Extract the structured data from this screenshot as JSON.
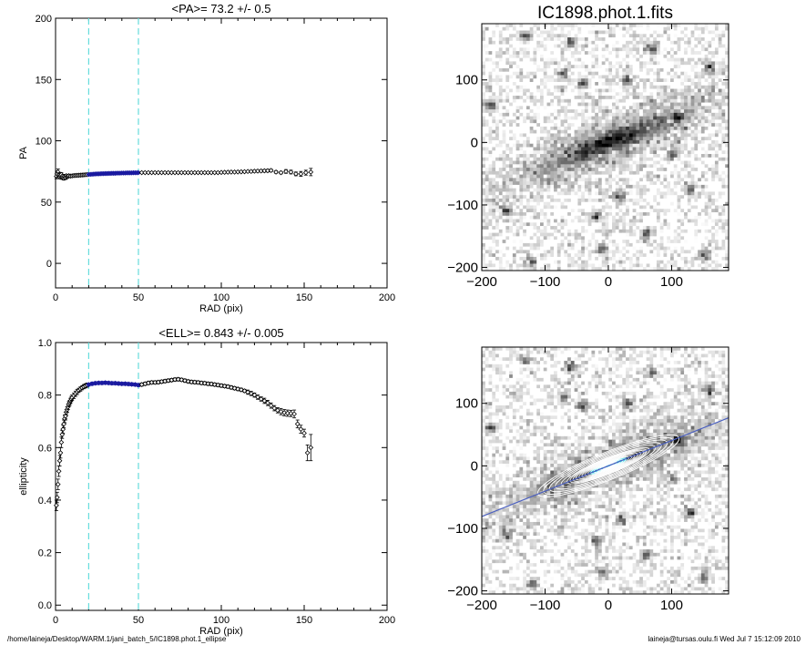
{
  "chart_data": [
    {
      "type": "scatter",
      "title": "<PA>=  73.2 +/-   0.5",
      "xlabel": "RAD (pix)",
      "ylabel": "PA",
      "xlim": [
        0,
        200
      ],
      "ylim": [
        -20,
        200
      ],
      "xticks": [
        0,
        50,
        100,
        150,
        200
      ],
      "yticks": [
        0,
        50,
        100,
        150,
        200
      ],
      "vlines": [
        20,
        50
      ],
      "highlight_range": [
        20,
        50
      ],
      "points": [
        [
          0.5,
          71.0,
          2.0
        ],
        [
          1.0,
          73.0,
          2.5
        ],
        [
          1.5,
          74.5,
          2.5
        ],
        [
          2.0,
          72.0,
          2.0
        ],
        [
          2.5,
          70.5,
          1.5
        ],
        [
          3.0,
          71.5,
          1.5
        ],
        [
          3.5,
          72.5,
          1.5
        ],
        [
          4.0,
          70.0,
          1.5
        ],
        [
          4.5,
          71.0,
          1.5
        ],
        [
          5.0,
          69.5,
          1.5
        ],
        [
          5.5,
          71.0,
          1.5
        ],
        [
          6.0,
          70.0,
          1.5
        ],
        [
          6.5,
          71.5,
          1.0
        ],
        [
          7.0,
          70.5,
          1.0
        ],
        [
          7.5,
          71.0,
          1.0
        ],
        [
          8.0,
          71.5,
          1.0
        ],
        [
          9.0,
          71.2,
          1.0
        ],
        [
          10.0,
          71.4,
          1.0
        ],
        [
          11.0,
          71.6,
          0.8
        ],
        [
          12.0,
          71.7,
          0.8
        ],
        [
          13.0,
          71.8,
          0.8
        ],
        [
          14.0,
          71.9,
          0.8
        ],
        [
          15.0,
          72.0,
          0.8
        ],
        [
          16.0,
          72.1,
          0.8
        ],
        [
          17.0,
          72.2,
          0.8
        ],
        [
          18.0,
          72.3,
          0.8
        ],
        [
          19.0,
          72.4,
          0.8
        ],
        [
          20.0,
          72.5,
          0.6
        ],
        [
          21.0,
          72.6,
          0.6
        ],
        [
          22.0,
          72.7,
          0.6
        ],
        [
          23.0,
          72.8,
          0.6
        ],
        [
          24.0,
          72.9,
          0.6
        ],
        [
          25.0,
          73.0,
          0.6
        ],
        [
          26.0,
          73.0,
          0.6
        ],
        [
          27.0,
          73.1,
          0.6
        ],
        [
          28.0,
          73.2,
          0.6
        ],
        [
          29.0,
          73.2,
          0.6
        ],
        [
          30.0,
          73.3,
          0.6
        ],
        [
          31.0,
          73.3,
          0.6
        ],
        [
          32.0,
          73.4,
          0.6
        ],
        [
          33.0,
          73.4,
          0.6
        ],
        [
          34.0,
          73.5,
          0.6
        ],
        [
          35.0,
          73.5,
          0.6
        ],
        [
          36.0,
          73.5,
          0.6
        ],
        [
          37.0,
          73.6,
          0.6
        ],
        [
          38.0,
          73.6,
          0.6
        ],
        [
          39.0,
          73.6,
          0.6
        ],
        [
          40.0,
          73.7,
          0.6
        ],
        [
          41.0,
          73.7,
          0.6
        ],
        [
          42.0,
          73.7,
          0.6
        ],
        [
          43.0,
          73.8,
          0.6
        ],
        [
          44.0,
          73.8,
          0.6
        ],
        [
          45.0,
          73.8,
          0.6
        ],
        [
          46.0,
          73.8,
          0.6
        ],
        [
          47.0,
          73.9,
          0.6
        ],
        [
          48.0,
          73.9,
          0.6
        ],
        [
          49.0,
          73.9,
          0.6
        ],
        [
          50.0,
          74.0,
          0.6
        ],
        [
          52.0,
          74.0,
          0.6
        ],
        [
          54.0,
          74.0,
          0.6
        ],
        [
          56.0,
          74.0,
          0.6
        ],
        [
          58.0,
          74.0,
          0.6
        ],
        [
          60.0,
          74.0,
          0.6
        ],
        [
          62.0,
          74.0,
          0.6
        ],
        [
          64.0,
          74.0,
          0.6
        ],
        [
          66.0,
          74.0,
          0.6
        ],
        [
          68.0,
          74.0,
          0.6
        ],
        [
          70.0,
          74.0,
          0.6
        ],
        [
          72.0,
          74.0,
          0.6
        ],
        [
          74.0,
          74.0,
          0.6
        ],
        [
          76.0,
          74.0,
          0.6
        ],
        [
          78.0,
          74.0,
          0.6
        ],
        [
          80.0,
          74.0,
          0.6
        ],
        [
          82.0,
          74.0,
          0.6
        ],
        [
          84.0,
          74.0,
          0.6
        ],
        [
          86.0,
          74.0,
          0.6
        ],
        [
          88.0,
          74.0,
          0.6
        ],
        [
          90.0,
          74.0,
          0.6
        ],
        [
          92.0,
          74.0,
          0.6
        ],
        [
          94.0,
          74.0,
          0.6
        ],
        [
          96.0,
          74.0,
          0.6
        ],
        [
          98.0,
          74.0,
          0.6
        ],
        [
          100.0,
          74.2,
          0.6
        ],
        [
          102.0,
          74.3,
          0.6
        ],
        [
          104.0,
          74.4,
          0.6
        ],
        [
          106.0,
          74.5,
          0.6
        ],
        [
          108.0,
          74.5,
          0.6
        ],
        [
          110.0,
          74.6,
          0.6
        ],
        [
          112.0,
          74.7,
          0.6
        ],
        [
          114.0,
          74.8,
          0.6
        ],
        [
          116.0,
          75.0,
          0.6
        ],
        [
          118.0,
          75.0,
          0.8
        ],
        [
          120.0,
          75.2,
          0.8
        ],
        [
          122.0,
          75.3,
          0.8
        ],
        [
          124.0,
          75.4,
          0.8
        ],
        [
          126.0,
          75.5,
          1.0
        ],
        [
          128.0,
          75.6,
          1.0
        ],
        [
          130.0,
          75.8,
          1.0
        ],
        [
          133.0,
          74.5,
          1.0
        ],
        [
          136.0,
          74.0,
          1.0
        ],
        [
          139.0,
          75.0,
          1.5
        ],
        [
          142.0,
          74.5,
          1.5
        ],
        [
          145.0,
          73.0,
          1.5
        ],
        [
          148.0,
          73.0,
          2.0
        ],
        [
          151.0,
          74.0,
          2.0
        ],
        [
          154.0,
          74.5,
          3.0
        ]
      ]
    },
    {
      "type": "scatter",
      "title": "<ELL>= 0.843 +/-  0.005",
      "xlabel": "RAD (pix)",
      "ylabel": "ellipticity",
      "xlim": [
        0,
        200
      ],
      "ylim": [
        -0.02,
        1.0
      ],
      "xticks": [
        0,
        50,
        100,
        150,
        200
      ],
      "yticks": [
        0.0,
        0.2,
        0.4,
        0.6,
        0.8,
        1.0
      ],
      "vlines": [
        20,
        50
      ],
      "highlight_range": [
        20,
        50
      ],
      "points": [
        [
          0.5,
          0.38,
          0.02
        ],
        [
          1.0,
          0.41,
          0.02
        ],
        [
          1.5,
          0.46,
          0.02
        ],
        [
          2.0,
          0.51,
          0.02
        ],
        [
          2.5,
          0.55,
          0.02
        ],
        [
          3.0,
          0.58,
          0.02
        ],
        [
          3.5,
          0.62,
          0.02
        ],
        [
          4.0,
          0.65,
          0.015
        ],
        [
          4.5,
          0.67,
          0.015
        ],
        [
          5.0,
          0.69,
          0.015
        ],
        [
          5.5,
          0.71,
          0.015
        ],
        [
          6.0,
          0.72,
          0.015
        ],
        [
          6.5,
          0.735,
          0.01
        ],
        [
          7.0,
          0.745,
          0.01
        ],
        [
          7.5,
          0.755,
          0.01
        ],
        [
          8.0,
          0.765,
          0.01
        ],
        [
          8.5,
          0.77,
          0.01
        ],
        [
          9.0,
          0.778,
          0.01
        ],
        [
          9.5,
          0.785,
          0.01
        ],
        [
          10.0,
          0.79,
          0.01
        ],
        [
          11.0,
          0.797,
          0.01
        ],
        [
          12.0,
          0.805,
          0.01
        ],
        [
          13.0,
          0.812,
          0.01
        ],
        [
          14.0,
          0.818,
          0.008
        ],
        [
          15.0,
          0.823,
          0.008
        ],
        [
          16.0,
          0.828,
          0.008
        ],
        [
          17.0,
          0.832,
          0.008
        ],
        [
          18.0,
          0.835,
          0.008
        ],
        [
          19.0,
          0.838,
          0.008
        ],
        [
          20.0,
          0.84,
          0.006
        ],
        [
          22.0,
          0.843,
          0.006
        ],
        [
          24.0,
          0.845,
          0.006
        ],
        [
          26.0,
          0.846,
          0.006
        ],
        [
          28.0,
          0.846,
          0.006
        ],
        [
          30.0,
          0.847,
          0.006
        ],
        [
          32.0,
          0.846,
          0.006
        ],
        [
          34.0,
          0.845,
          0.006
        ],
        [
          36.0,
          0.845,
          0.006
        ],
        [
          38.0,
          0.844,
          0.006
        ],
        [
          40.0,
          0.843,
          0.006
        ],
        [
          42.0,
          0.843,
          0.006
        ],
        [
          44.0,
          0.842,
          0.006
        ],
        [
          46.0,
          0.841,
          0.006
        ],
        [
          48.0,
          0.84,
          0.006
        ],
        [
          50.0,
          0.838,
          0.006
        ],
        [
          52.0,
          0.84,
          0.006
        ],
        [
          54.0,
          0.843,
          0.006
        ],
        [
          56.0,
          0.846,
          0.006
        ],
        [
          58.0,
          0.848,
          0.006
        ],
        [
          60.0,
          0.848,
          0.006
        ],
        [
          62.0,
          0.849,
          0.006
        ],
        [
          64.0,
          0.851,
          0.006
        ],
        [
          66.0,
          0.853,
          0.006
        ],
        [
          68.0,
          0.855,
          0.006
        ],
        [
          70.0,
          0.857,
          0.006
        ],
        [
          72.0,
          0.859,
          0.006
        ],
        [
          74.0,
          0.86,
          0.006
        ],
        [
          76.0,
          0.858,
          0.006
        ],
        [
          78.0,
          0.855,
          0.006
        ],
        [
          80.0,
          0.852,
          0.006
        ],
        [
          82.0,
          0.85,
          0.006
        ],
        [
          84.0,
          0.849,
          0.006
        ],
        [
          86.0,
          0.848,
          0.006
        ],
        [
          88.0,
          0.846,
          0.006
        ],
        [
          90.0,
          0.845,
          0.006
        ],
        [
          92.0,
          0.843,
          0.006
        ],
        [
          94.0,
          0.842,
          0.006
        ],
        [
          96.0,
          0.84,
          0.006
        ],
        [
          98.0,
          0.838,
          0.006
        ],
        [
          100.0,
          0.836,
          0.006
        ],
        [
          102.0,
          0.834,
          0.006
        ],
        [
          104.0,
          0.832,
          0.006
        ],
        [
          106.0,
          0.829,
          0.006
        ],
        [
          108.0,
          0.826,
          0.006
        ],
        [
          110.0,
          0.823,
          0.006
        ],
        [
          112.0,
          0.82,
          0.006
        ],
        [
          114.0,
          0.816,
          0.006
        ],
        [
          116.0,
          0.811,
          0.008
        ],
        [
          118.0,
          0.806,
          0.008
        ],
        [
          120.0,
          0.8,
          0.008
        ],
        [
          122.0,
          0.792,
          0.008
        ],
        [
          124.0,
          0.785,
          0.008
        ],
        [
          126.0,
          0.778,
          0.01
        ],
        [
          128.0,
          0.77,
          0.01
        ],
        [
          130.0,
          0.76,
          0.01
        ],
        [
          132.0,
          0.75,
          0.01
        ],
        [
          134.0,
          0.742,
          0.01
        ],
        [
          136.0,
          0.737,
          0.012
        ],
        [
          138.0,
          0.733,
          0.012
        ],
        [
          140.0,
          0.731,
          0.012
        ],
        [
          142.0,
          0.73,
          0.012
        ],
        [
          144.0,
          0.728,
          0.015
        ],
        [
          146.0,
          0.69,
          0.015
        ],
        [
          148.0,
          0.67,
          0.015
        ],
        [
          150.0,
          0.655,
          0.015
        ],
        [
          152.0,
          0.58,
          0.03
        ],
        [
          154.0,
          0.6,
          0.05
        ]
      ]
    },
    {
      "type": "heatmap",
      "title": "IC1898.phot.1.fits",
      "xlim": [
        -200,
        190
      ],
      "ylim": [
        -205,
        190
      ],
      "xticks": [
        -200,
        -100,
        0,
        100
      ],
      "yticks": [
        -200,
        -100,
        0,
        100
      ],
      "galaxy_pa_deg": 73.2,
      "ellipticity": 0.843
    },
    {
      "type": "heatmap",
      "xlim": [
        -200,
        190
      ],
      "ylim": [
        -205,
        190
      ],
      "xticks": [
        -200,
        -100,
        0,
        100
      ],
      "yticks": [
        -200,
        -100,
        0,
        100
      ],
      "galaxy_pa_deg": 73.2,
      "ellipticity": 0.843,
      "contour_radii": [
        10,
        15,
        20,
        25,
        30,
        35,
        40,
        45,
        50,
        55,
        60,
        65,
        70,
        80,
        90,
        100,
        110,
        120
      ]
    }
  ],
  "footer": {
    "path": "/home/laineja/Desktop/WARM.1/jani_batch_5/IC1898.phot.1_ellipse",
    "user_date": "laineja@tursas.oulu.fi  Wed Jul  7 15:12:09 2010"
  },
  "colors": {
    "highlight": "#1a1aa0",
    "vline": "#66dddd",
    "isophote": "#ffffff",
    "inner_fill": "#22d6e0",
    "pa_line": "#4a5fc0"
  }
}
